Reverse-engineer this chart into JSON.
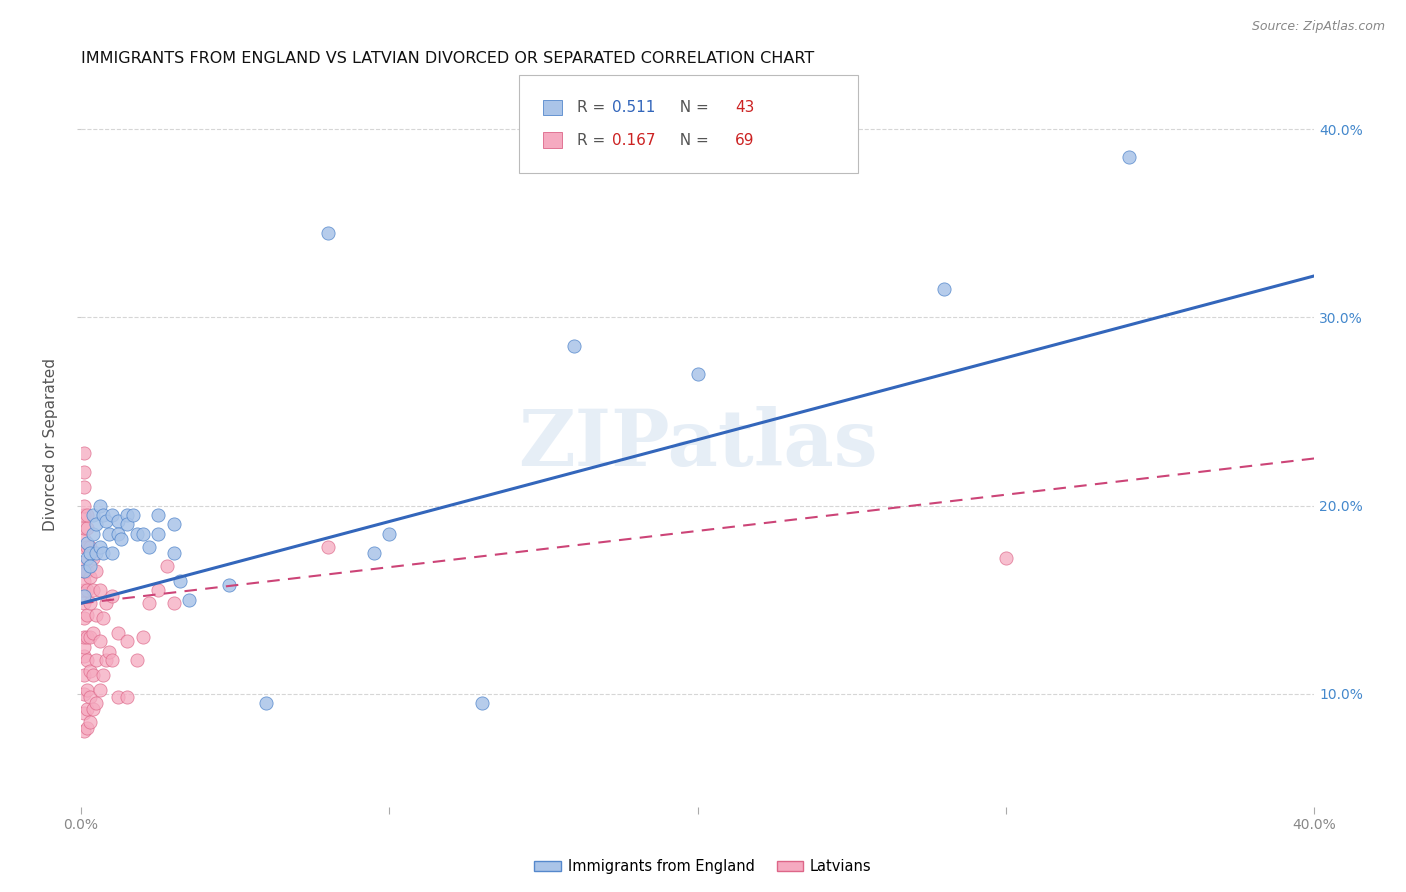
{
  "title": "IMMIGRANTS FROM ENGLAND VS LATVIAN DIVORCED OR SEPARATED CORRELATION CHART",
  "source": "Source: ZipAtlas.com",
  "ylabel": "Divorced or Separated",
  "xlim": [
    0.0,
    0.4
  ],
  "ylim": [
    0.04,
    0.425
  ],
  "x_ticks": [
    0.0,
    0.1,
    0.2,
    0.3,
    0.4
  ],
  "x_tick_labels": [
    "0.0%",
    "",
    "",
    "",
    "40.0%"
  ],
  "y_ticks": [
    0.1,
    0.2,
    0.3,
    0.4
  ],
  "y_tick_labels": [
    "10.0%",
    "20.0%",
    "30.0%",
    "40.0%"
  ],
  "watermark": "ZIPatlas",
  "england_color": "#aac4e8",
  "england_edge_color": "#5588cc",
  "england_line_color": "#3366bb",
  "latvian_color": "#f5aac0",
  "latvian_edge_color": "#dd6688",
  "latvian_line_color": "#cc4477",
  "england_line": [
    0.0,
    0.148,
    0.4,
    0.322
  ],
  "latvian_line": [
    0.0,
    0.148,
    0.4,
    0.225
  ],
  "england_scatter": [
    [
      0.001,
      0.152
    ],
    [
      0.001,
      0.165
    ],
    [
      0.002,
      0.18
    ],
    [
      0.002,
      0.172
    ],
    [
      0.003,
      0.175
    ],
    [
      0.003,
      0.168
    ],
    [
      0.004,
      0.185
    ],
    [
      0.004,
      0.195
    ],
    [
      0.005,
      0.19
    ],
    [
      0.005,
      0.175
    ],
    [
      0.006,
      0.2
    ],
    [
      0.006,
      0.178
    ],
    [
      0.007,
      0.195
    ],
    [
      0.007,
      0.175
    ],
    [
      0.008,
      0.192
    ],
    [
      0.009,
      0.185
    ],
    [
      0.01,
      0.195
    ],
    [
      0.01,
      0.175
    ],
    [
      0.012,
      0.192
    ],
    [
      0.012,
      0.185
    ],
    [
      0.013,
      0.182
    ],
    [
      0.015,
      0.195
    ],
    [
      0.015,
      0.19
    ],
    [
      0.017,
      0.195
    ],
    [
      0.018,
      0.185
    ],
    [
      0.02,
      0.185
    ],
    [
      0.022,
      0.178
    ],
    [
      0.025,
      0.185
    ],
    [
      0.025,
      0.195
    ],
    [
      0.03,
      0.175
    ],
    [
      0.03,
      0.19
    ],
    [
      0.032,
      0.16
    ],
    [
      0.035,
      0.15
    ],
    [
      0.048,
      0.158
    ],
    [
      0.06,
      0.095
    ],
    [
      0.08,
      0.345
    ],
    [
      0.095,
      0.175
    ],
    [
      0.1,
      0.185
    ],
    [
      0.13,
      0.095
    ],
    [
      0.16,
      0.285
    ],
    [
      0.2,
      0.27
    ],
    [
      0.28,
      0.315
    ],
    [
      0.34,
      0.385
    ]
  ],
  "latvian_scatter": [
    [
      0.001,
      0.08
    ],
    [
      0.001,
      0.09
    ],
    [
      0.001,
      0.1
    ],
    [
      0.001,
      0.11
    ],
    [
      0.001,
      0.12
    ],
    [
      0.001,
      0.125
    ],
    [
      0.001,
      0.13
    ],
    [
      0.001,
      0.14
    ],
    [
      0.001,
      0.148
    ],
    [
      0.001,
      0.155
    ],
    [
      0.001,
      0.16
    ],
    [
      0.001,
      0.165
    ],
    [
      0.001,
      0.17
    ],
    [
      0.001,
      0.178
    ],
    [
      0.001,
      0.182
    ],
    [
      0.001,
      0.188
    ],
    [
      0.001,
      0.195
    ],
    [
      0.001,
      0.2
    ],
    [
      0.001,
      0.21
    ],
    [
      0.001,
      0.218
    ],
    [
      0.001,
      0.228
    ],
    [
      0.002,
      0.082
    ],
    [
      0.002,
      0.092
    ],
    [
      0.002,
      0.102
    ],
    [
      0.002,
      0.118
    ],
    [
      0.002,
      0.13
    ],
    [
      0.002,
      0.142
    ],
    [
      0.002,
      0.155
    ],
    [
      0.002,
      0.165
    ],
    [
      0.002,
      0.178
    ],
    [
      0.002,
      0.188
    ],
    [
      0.002,
      0.195
    ],
    [
      0.003,
      0.085
    ],
    [
      0.003,
      0.098
    ],
    [
      0.003,
      0.112
    ],
    [
      0.003,
      0.13
    ],
    [
      0.003,
      0.148
    ],
    [
      0.003,
      0.162
    ],
    [
      0.003,
      0.178
    ],
    [
      0.004,
      0.092
    ],
    [
      0.004,
      0.11
    ],
    [
      0.004,
      0.132
    ],
    [
      0.004,
      0.155
    ],
    [
      0.004,
      0.172
    ],
    [
      0.005,
      0.095
    ],
    [
      0.005,
      0.118
    ],
    [
      0.005,
      0.142
    ],
    [
      0.005,
      0.165
    ],
    [
      0.006,
      0.102
    ],
    [
      0.006,
      0.128
    ],
    [
      0.006,
      0.155
    ],
    [
      0.007,
      0.11
    ],
    [
      0.007,
      0.14
    ],
    [
      0.008,
      0.118
    ],
    [
      0.008,
      0.148
    ],
    [
      0.009,
      0.122
    ],
    [
      0.01,
      0.118
    ],
    [
      0.01,
      0.152
    ],
    [
      0.012,
      0.098
    ],
    [
      0.012,
      0.132
    ],
    [
      0.015,
      0.098
    ],
    [
      0.015,
      0.128
    ],
    [
      0.018,
      0.118
    ],
    [
      0.02,
      0.13
    ],
    [
      0.022,
      0.148
    ],
    [
      0.025,
      0.155
    ],
    [
      0.028,
      0.168
    ],
    [
      0.03,
      0.148
    ],
    [
      0.08,
      0.178
    ],
    [
      0.3,
      0.172
    ]
  ],
  "background_color": "#ffffff",
  "grid_color": "#cccccc",
  "title_fontsize": 11.5,
  "axis_label_fontsize": 11,
  "tick_fontsize": 10,
  "right_tick_color": "#4488cc"
}
